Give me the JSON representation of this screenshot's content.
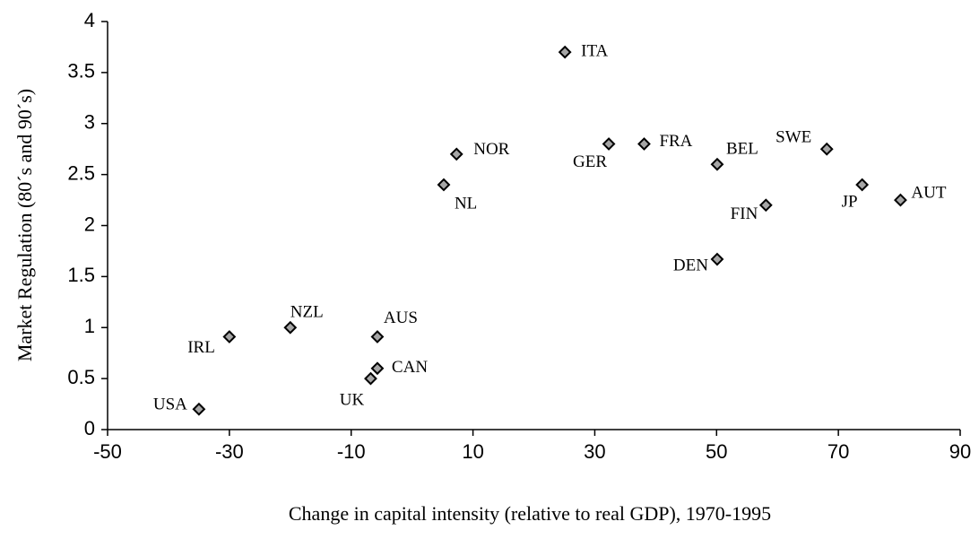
{
  "chart_data": {
    "type": "scatter",
    "x_label": "Change in capital intensity (relative to real GDP), 1970-1995",
    "y_label": "Market Regulation (80´s and 90´s)",
    "labels": [
      "USA",
      "IRL",
      "NZL",
      "AUS",
      "CAN",
      "UK",
      "NL",
      "NOR",
      "ITA",
      "GER",
      "FRA",
      "BEL",
      "DEN",
      "FIN",
      "SWE",
      "JP",
      "AUT"
    ],
    "x": [
      -35,
      -30,
      -20,
      -5.7,
      -5.7,
      -6.8,
      5.2,
      7.3,
      25.1,
      32.3,
      38.1,
      50.1,
      50.1,
      58.1,
      68.1,
      73.9,
      80.2
    ],
    "values": [
      0.2,
      0.91,
      1.0,
      0.91,
      0.6,
      0.5,
      2.4,
      2.7,
      3.7,
      2.8,
      2.8,
      2.6,
      1.67,
      2.2,
      2.75,
      2.4,
      2.25
    ],
    "color": "#a6a6a6",
    "xlim": [
      -50,
      90
    ],
    "xticks": [
      -50,
      -30,
      -10,
      10,
      30,
      50,
      70,
      90
    ],
    "ylim": [
      0,
      4
    ],
    "yticks": [
      0,
      0.5,
      1,
      1.5,
      2,
      2.5,
      3,
      3.5,
      4
    ],
    "grid": false
  }
}
